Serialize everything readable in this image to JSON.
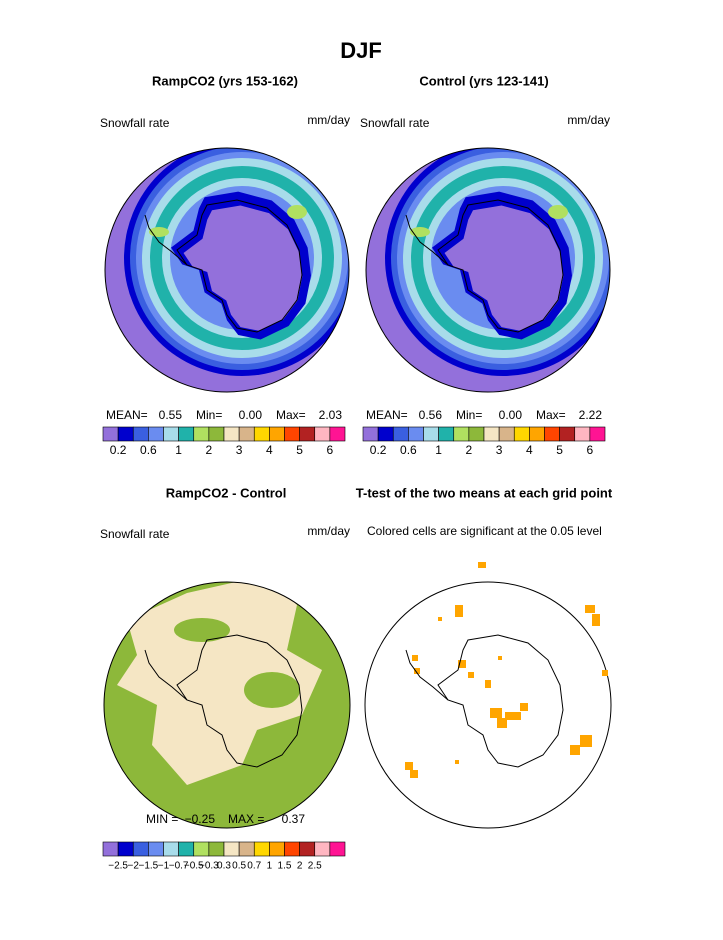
{
  "title": "DJF",
  "panels": [
    {
      "title": "RampCO2 (yrs 153-162)",
      "left_label": "Snowfall rate",
      "right_label": "mm/day",
      "stats": [
        {
          "label": "MEAN=",
          "value": "0.55"
        },
        {
          "label": "Min=",
          "value": "0.00"
        },
        {
          "label": "Max=",
          "value": "2.03"
        }
      ],
      "colorbar": {
        "colors": [
          "#9370db",
          "#0000cd",
          "#3a5fe0",
          "#6a8cf0",
          "#a8dcea",
          "#20b2aa",
          "#b0e060",
          "#8db83a",
          "#f5e6c4",
          "#d8b48a",
          "#ffd700",
          "#ffa500",
          "#ff4500",
          "#b22222",
          "#ffb6c1",
          "#ff1493"
        ],
        "labels": [
          "0.2",
          "0.6",
          "1",
          "2",
          "3",
          "4",
          "5",
          "6"
        ]
      }
    },
    {
      "title": "Control (yrs 123-141)",
      "left_label": "Snowfall rate",
      "right_label": "mm/day",
      "stats": [
        {
          "label": "MEAN=",
          "value": "0.56"
        },
        {
          "label": "Min=",
          "value": "0.00"
        },
        {
          "label": "Max=",
          "value": "2.22"
        }
      ],
      "colorbar": {
        "colors": [
          "#9370db",
          "#0000cd",
          "#3a5fe0",
          "#6a8cf0",
          "#a8dcea",
          "#20b2aa",
          "#b0e060",
          "#8db83a",
          "#f5e6c4",
          "#d8b48a",
          "#ffd700",
          "#ffa500",
          "#ff4500",
          "#b22222",
          "#ffb6c1",
          "#ff1493"
        ],
        "labels": [
          "0.2",
          "0.6",
          "1",
          "2",
          "3",
          "4",
          "5",
          "6"
        ]
      }
    },
    {
      "title": "RampCO2 - Control",
      "left_label": "Snowfall rate",
      "right_label": "mm/day",
      "stats": [
        {
          "label": "MIN =",
          "value": "−0.25"
        },
        {
          "label": "MAX =",
          "value": "0.37"
        }
      ],
      "colorbar": {
        "colors": [
          "#9370db",
          "#0000cd",
          "#3a5fe0",
          "#6a8cf0",
          "#a8dcea",
          "#20b2aa",
          "#b0e060",
          "#8db83a",
          "#f5e6c4",
          "#d8b48a",
          "#ffd700",
          "#ffa500",
          "#ff4500",
          "#b22222",
          "#ffb6c1",
          "#ff1493"
        ],
        "labels": [
          "−2.5",
          "−2",
          "−1.5",
          "−1",
          "−0.7",
          "−0.5",
          "−0.3",
          "0.3",
          "0.5",
          "0.7",
          "1",
          "1.5",
          "2",
          "2.5"
        ]
      }
    },
    {
      "title": "T-test of the two means at each grid point",
      "left_label": "Colored cells are significant at the 0.05 level"
    }
  ]
}
